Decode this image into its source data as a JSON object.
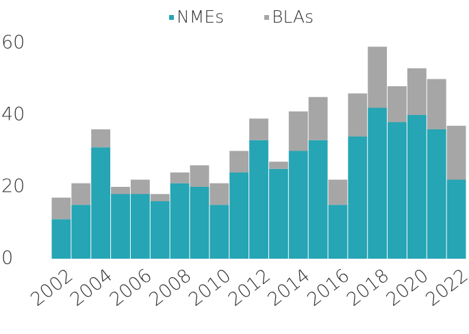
{
  "chart_data": {
    "type": "stacked_bar",
    "categories": [
      "2002",
      null,
      "2004",
      null,
      "2006",
      null,
      "2008",
      null,
      "2010",
      null,
      "2012",
      null,
      "2014",
      null,
      "2016",
      null,
      "2018",
      null,
      "2020",
      null,
      "2022"
    ],
    "series": [
      {
        "name": "NMEs",
        "color": "#26a5b4",
        "values": [
          11,
          15,
          31,
          18,
          18,
          16,
          21,
          20,
          15,
          24,
          33,
          25,
          30,
          33,
          15,
          34,
          42,
          38,
          40,
          36,
          22
        ]
      },
      {
        "name": "BLAs",
        "color": "#a6a6a6",
        "values": [
          6,
          6,
          5,
          2,
          4,
          2,
          3,
          6,
          6,
          6,
          6,
          2,
          11,
          12,
          7,
          12,
          17,
          10,
          13,
          14,
          15
        ]
      }
    ],
    "ylim": [
      0,
      60
    ],
    "yticks": [
      0,
      20,
      40,
      60
    ],
    "grid": false,
    "legend": "top"
  }
}
